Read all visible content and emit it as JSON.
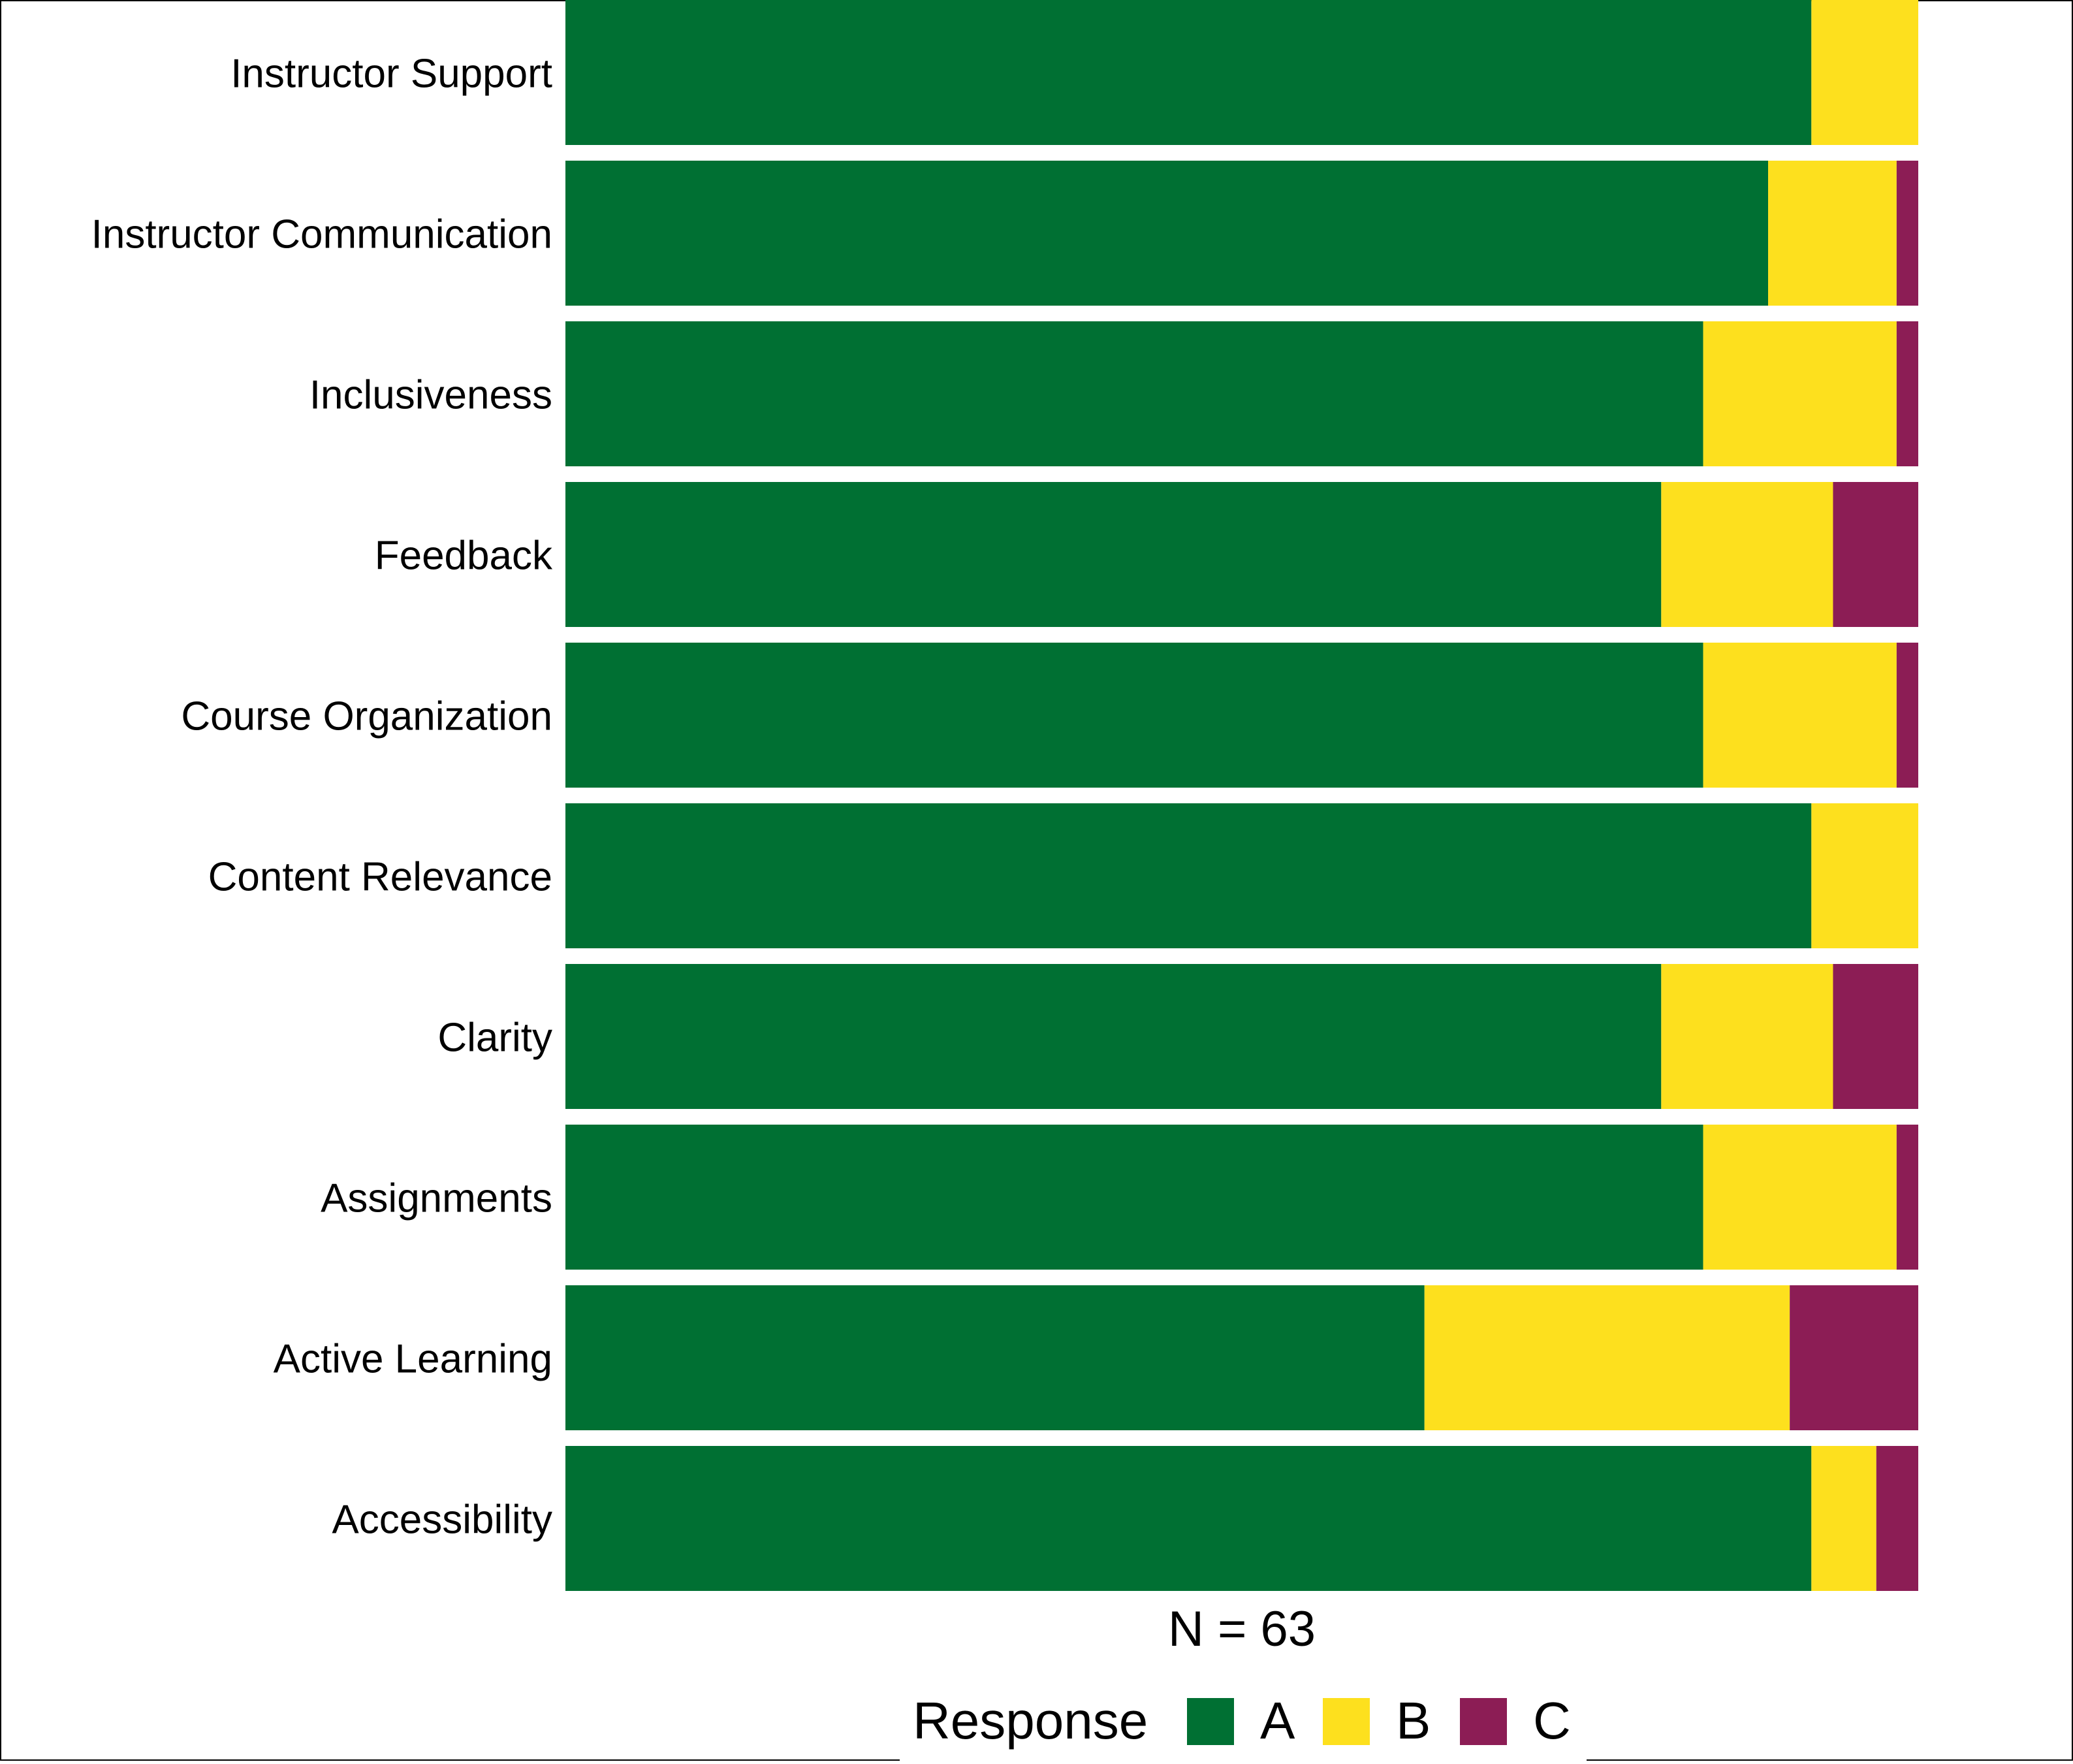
{
  "chart_data": {
    "type": "bar",
    "orientation": "horizontal",
    "stacked": true,
    "normalized": true,
    "title": "",
    "xlabel": "N = 63",
    "ylabel": "",
    "xlim": [
      0,
      1
    ],
    "grid": false,
    "legend_placement": "bottom",
    "legend_title": "Response",
    "categories": [
      "Instructor Support",
      "Instructor Communication",
      "Inclusiveness",
      "Feedback",
      "Course Organization",
      "Content Relevance",
      "Clarity",
      "Assignments",
      "Active Learning",
      "Accessibility"
    ],
    "series": [
      {
        "name": "A",
        "color": "#007033",
        "values": [
          0.921,
          0.889,
          0.841,
          0.81,
          0.841,
          0.921,
          0.81,
          0.841,
          0.635,
          0.921
        ]
      },
      {
        "name": "B",
        "color": "#FDE01E",
        "values": [
          0.079,
          0.095,
          0.143,
          0.127,
          0.143,
          0.079,
          0.127,
          0.143,
          0.27,
          0.048
        ]
      },
      {
        "name": "C",
        "color": "#8C1D55",
        "values": [
          0.0,
          0.016,
          0.016,
          0.063,
          0.016,
          0.0,
          0.063,
          0.016,
          0.095,
          0.031
        ]
      }
    ]
  }
}
